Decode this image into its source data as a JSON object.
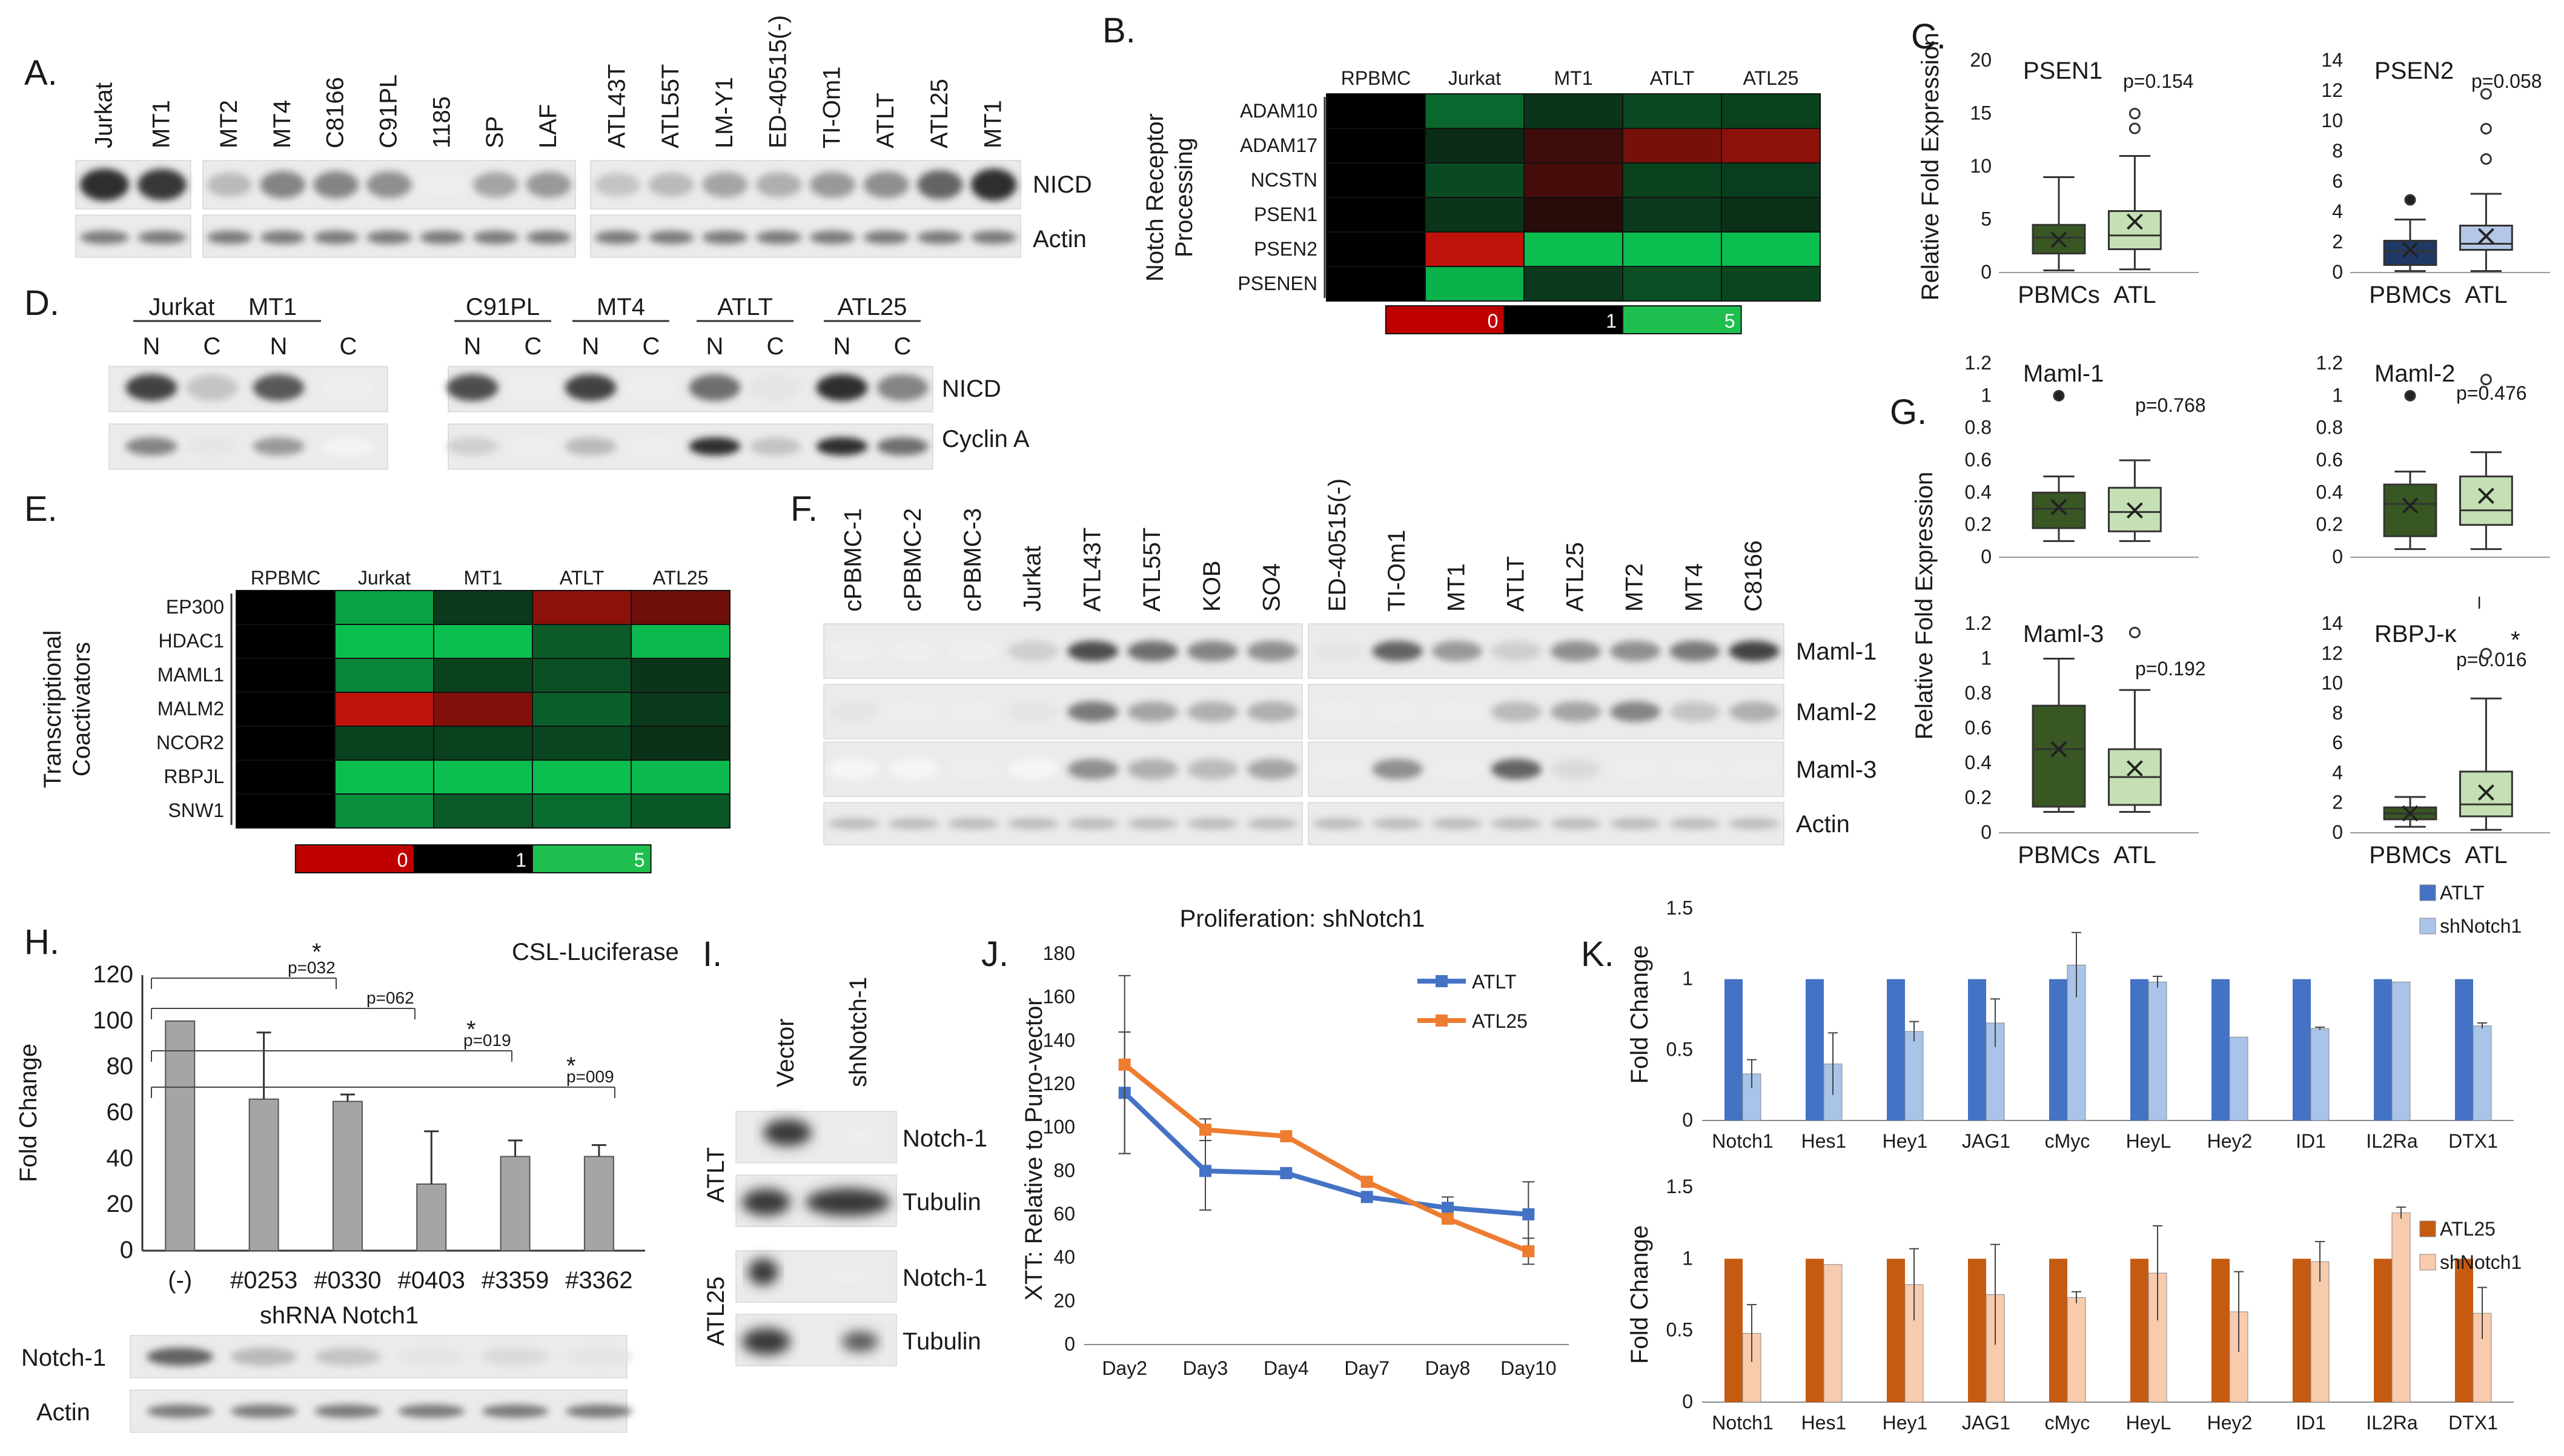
{
  "panel_letters": {
    "A": "A.",
    "B": "B.",
    "C": "C.",
    "D": "D.",
    "E": "E.",
    "F": "F.",
    "G": "G.",
    "H": "H.",
    "I": "I.",
    "J": "J.",
    "K": "K."
  },
  "panel_A": {
    "lanes_g1": [
      "Jurkat",
      "MT1"
    ],
    "lanes_g2": [
      "MT2",
      "MT4",
      "C8166",
      "C91PL",
      "1185",
      "SP",
      "LAF"
    ],
    "lanes_g3": [
      "ATL43T",
      "ATL55T",
      "LM-Y1",
      "ED-40515(-)",
      "TI-Om1",
      "ATLT",
      "ATL25",
      "MT1"
    ],
    "rows": [
      "NICD",
      "Actin"
    ],
    "nicd_g1": [
      0.95,
      0.9
    ],
    "nicd_g2": [
      0.3,
      0.55,
      0.55,
      0.5,
      0.05,
      0.4,
      0.45
    ],
    "nicd_g3": [
      0.25,
      0.3,
      0.4,
      0.35,
      0.45,
      0.5,
      0.7,
      0.95
    ]
  },
  "panel_B": {
    "columns": [
      "RPBMC",
      "Jurkat",
      "MT1",
      "ATLT",
      "ATL25"
    ],
    "rows": [
      "ADAM10",
      "ADAM17",
      "NCSTN",
      "PSEN1",
      "PSEN2",
      "PSENEN"
    ],
    "ylabel_1": "Notch Receptor",
    "ylabel_2": "Processing",
    "values": [
      [
        1,
        2.5,
        1.3,
        1.8,
        1.6
      ],
      [
        1,
        1.1,
        0.75,
        0.45,
        0.35
      ],
      [
        1,
        1.8,
        0.7,
        1.6,
        1.5
      ],
      [
        1,
        1.3,
        0.85,
        1.4,
        1.2
      ],
      [
        1,
        0.1,
        4.5,
        4.5,
        4.5
      ],
      [
        1,
        4.2,
        1.4,
        1.9,
        1.7
      ]
    ],
    "scale": [
      "0",
      "1",
      "5"
    ]
  },
  "panel_C": {
    "ylabel": "Relative Fold Expression",
    "plots": [
      {
        "title": "PSEN1",
        "pvalue": "p=0.154",
        "yticks": [
          "0",
          "5",
          "10",
          "15",
          "20"
        ],
        "ymax": 20,
        "groups": [
          "PBMCs",
          "ATL"
        ],
        "boxes": [
          {
            "q1": 1.8,
            "med": 3.3,
            "q3": 4.5,
            "wlo": 0.2,
            "whi": 9,
            "mean": 3.1,
            "out": []
          },
          {
            "q1": 2.2,
            "med": 3.5,
            "q3": 5.8,
            "wlo": 0.3,
            "whi": 11,
            "mean": 4.8,
            "out": [
              13.6,
              15
            ]
          }
        ]
      },
      {
        "title": "PSEN2",
        "pvalue": "p=0.058",
        "yticks": [
          "0",
          "2",
          "4",
          "6",
          "8",
          "10",
          "12",
          "14"
        ],
        "ymax": 14,
        "groups": [
          "PBMCs",
          "ATL"
        ],
        "boxes": [
          {
            "q1": 0.5,
            "med": 1.4,
            "q3": 2.1,
            "wlo": 0.1,
            "whi": 3.5,
            "mean": 1.5,
            "out": [
              4.8
            ]
          },
          {
            "q1": 1.5,
            "med": 1.9,
            "q3": 3.1,
            "wlo": 0.1,
            "whi": 5.2,
            "mean": 2.4,
            "out": [
              7.5,
              9.5,
              11.8
            ]
          }
        ]
      }
    ]
  },
  "panel_D": {
    "groups_left": [
      "Jurkat",
      "MT1"
    ],
    "groups_right": [
      "C91PL",
      "MT4",
      "ATLT",
      "ATL25"
    ],
    "nc": [
      "N",
      "C"
    ],
    "rows": [
      "NICD",
      "Cyclin A"
    ]
  },
  "panel_E": {
    "columns": [
      "RPBMC",
      "Jurkat",
      "MT1",
      "ATLT",
      "ATL25"
    ],
    "rows": [
      "EP300",
      "HDAC1",
      "MAML1",
      "MALM2",
      "NCOR2",
      "RBPJL",
      "SNW1"
    ],
    "ylabel_1": "Transcriptional",
    "ylabel_2": "Coactivators",
    "values": [
      [
        1,
        3.8,
        1.4,
        0.35,
        0.5
      ],
      [
        1,
        4.5,
        4.5,
        2.2,
        4.4
      ],
      [
        1,
        3.2,
        1.6,
        1.9,
        1.3
      ],
      [
        1,
        0.1,
        0.4,
        2.3,
        1.4
      ],
      [
        1,
        1.6,
        1.6,
        1.7,
        1.2
      ],
      [
        1,
        4.5,
        4.5,
        4.5,
        4.4
      ],
      [
        1,
        3.4,
        2.2,
        2.6,
        2.1
      ]
    ],
    "scale": [
      "0",
      "1",
      "5"
    ]
  },
  "panel_F": {
    "lanes_g1": [
      "cPBMC-1",
      "cPBMC-2",
      "cPBMC-3",
      "Jurkat",
      "ATL43T",
      "ATL55T",
      "KOB",
      "SO4"
    ],
    "lanes_g2": [
      "ED-40515(-)",
      "TI-Om1",
      "MT1",
      "ATLT",
      "ATL25",
      "MT2",
      "MT4",
      "C8166"
    ],
    "rows": [
      "Maml-1",
      "Maml-2",
      "Maml-3",
      "Actin"
    ]
  },
  "panel_G": {
    "ylabel": "Relative Fold Expression",
    "plots": [
      {
        "title": "Maml-1",
        "pvalue": "p=0.768",
        "yticks": [
          "0",
          "0.2",
          "0.4",
          "0.6",
          "0.8",
          "1",
          "1.2"
        ],
        "ymax": 1.2,
        "groups": [],
        "boxes": [
          {
            "q1": 0.18,
            "med": 0.3,
            "q3": 0.4,
            "wlo": 0.1,
            "whi": 0.5,
            "mean": 0.31,
            "out": [
              1.0
            ]
          },
          {
            "q1": 0.16,
            "med": 0.28,
            "q3": 0.43,
            "wlo": 0.1,
            "whi": 0.6,
            "mean": 0.29,
            "out": []
          }
        ]
      },
      {
        "title": "Maml-2",
        "pvalue": "p=0.476",
        "yticks": [
          "0",
          "0.2",
          "0.4",
          "0.6",
          "0.8",
          "1",
          "1.2"
        ],
        "ymax": 1.2,
        "groups": [],
        "boxes": [
          {
            "q1": 0.13,
            "med": 0.33,
            "q3": 0.45,
            "wlo": 0.05,
            "whi": 0.53,
            "mean": 0.32,
            "out": [
              1.0
            ]
          },
          {
            "q1": 0.2,
            "med": 0.29,
            "q3": 0.5,
            "wlo": 0.05,
            "whi": 0.65,
            "mean": 0.38,
            "out": [
              1.1
            ]
          }
        ]
      },
      {
        "title": "Maml-3",
        "pvalue": "p=0.192",
        "yticks": [
          "0",
          "0.2",
          "0.4",
          "0.6",
          "0.8",
          "1",
          "1.2"
        ],
        "ymax": 1.2,
        "groups": [
          "PBMCs",
          "ATL"
        ],
        "boxes": [
          {
            "q1": 0.15,
            "med": 0.48,
            "q3": 0.73,
            "wlo": 0.12,
            "whi": 1.0,
            "mean": 0.48,
            "out": []
          },
          {
            "q1": 0.16,
            "med": 0.32,
            "q3": 0.48,
            "wlo": 0.12,
            "whi": 0.82,
            "mean": 0.37,
            "out": [
              1.15
            ]
          }
        ]
      },
      {
        "title": "RBPJ-κ",
        "pvalue": "p=0.016",
        "star": "*",
        "yticks": [
          "0",
          "2",
          "4",
          "6",
          "8",
          "10",
          "12",
          "14"
        ],
        "ymax": 14,
        "groups": [
          "PBMCs",
          "ATL"
        ],
        "boxes": [
          {
            "q1": 0.9,
            "med": 1.3,
            "q3": 1.7,
            "wlo": 0.4,
            "whi": 2.4,
            "mean": 1.3,
            "out": []
          },
          {
            "q1": 1.1,
            "med": 1.9,
            "q3": 4.1,
            "wlo": 0.2,
            "whi": 9,
            "mean": 2.7,
            "out": [
              12
            ]
          }
        ]
      }
    ],
    "stray_mark": "l"
  },
  "panel_H": {
    "title": "CSL-Luciferase",
    "ylabel": "Fold Change",
    "xlabel": "shRNA Notch1",
    "yticks": [
      "0",
      "20",
      "40",
      "60",
      "80",
      "100",
      "120"
    ],
    "ymax": 120,
    "categories": [
      "(-)",
      "#0253",
      "#0330",
      "#0403",
      "#3359",
      "#3362"
    ],
    "values": [
      100,
      66,
      65,
      29,
      41,
      41
    ],
    "errors": [
      0,
      29,
      3,
      23,
      7,
      5
    ],
    "pvalues": [
      "p=032",
      "p=062",
      "p=019",
      "p=009"
    ],
    "stars": [
      "*",
      "*",
      "*"
    ],
    "blot_rows": [
      "Notch-1",
      "Actin"
    ]
  },
  "panel_I": {
    "columns": [
      "Vector",
      "shNotch-1"
    ],
    "groups": [
      "ATLT",
      "ATL25"
    ],
    "rows": [
      "Notch-1",
      "Tubulin",
      "Notch-1",
      "Tubulin"
    ]
  },
  "chart_data": [
    {
      "type": "line",
      "title": "Proliferation:  shNotch1",
      "xlabel": "",
      "ylabel": "XTT:  Relative to Puro-vector",
      "categories": [
        "Day2",
        "Day3",
        "Day4",
        "Day7",
        "Day8",
        "Day10"
      ],
      "yticks": [
        "0",
        "20",
        "40",
        "60",
        "80",
        "100",
        "120",
        "140",
        "160",
        "180"
      ],
      "ylim": [
        0,
        180
      ],
      "series": [
        {
          "name": "ATLT",
          "color": "#4472c4",
          "values": [
            116,
            80,
            79,
            68,
            63,
            60
          ],
          "errors": [
            28,
            18,
            0,
            0,
            5,
            15
          ]
        },
        {
          "name": "ATL25",
          "color": "#ed7d31",
          "values": [
            129,
            99,
            96,
            75,
            58,
            43
          ],
          "errors": [
            41,
            5,
            0,
            0,
            0,
            6
          ]
        }
      ]
    },
    {
      "type": "bar",
      "title": "",
      "ylabel": "Fold Change",
      "categories": [
        "Notch1",
        "Hes1",
        "Hey1",
        "JAG1",
        "cMyc",
        "HeyL",
        "Hey2",
        "ID1",
        "IL2Ra",
        "DTX1"
      ],
      "yticks": [
        "0",
        "0.5",
        "1",
        "1.5"
      ],
      "ylim": [
        0,
        1.5
      ],
      "series": [
        {
          "name": "ATLT",
          "color": "#4472c4",
          "values": [
            1,
            1,
            1,
            1,
            1,
            1,
            1,
            1,
            1,
            1
          ]
        },
        {
          "name": "shNotch1",
          "color": "#a9c4e8",
          "values": [
            0.33,
            0.4,
            0.63,
            0.69,
            1.1,
            0.98,
            0.59,
            0.65,
            0.98,
            0.67
          ],
          "errors": [
            0.1,
            0.22,
            0.07,
            0.17,
            0.23,
            0.04,
            0,
            0.01,
            0,
            0.02
          ]
        }
      ]
    },
    {
      "type": "bar",
      "title": "",
      "ylabel": "Fold Change",
      "categories": [
        "Notch1",
        "Hes1",
        "Hey1",
        "JAG1",
        "cMyc",
        "HeyL",
        "Hey2",
        "ID1",
        "IL2Ra",
        "DTX1"
      ],
      "yticks": [
        "0",
        "0.5",
        "1",
        "1.5"
      ],
      "ylim": [
        0,
        1.5
      ],
      "series": [
        {
          "name": "ATL25",
          "color": "#c55a11",
          "values": [
            1,
            1,
            1,
            1,
            1,
            1,
            1,
            1,
            1,
            1
          ]
        },
        {
          "name": "shNotch1",
          "color": "#f8cbad",
          "values": [
            0.48,
            0.96,
            0.82,
            0.75,
            0.73,
            0.9,
            0.63,
            0.98,
            1.32,
            0.62
          ],
          "errors": [
            0.2,
            0,
            0.25,
            0.35,
            0.04,
            0.33,
            0.28,
            0.14,
            0.04,
            0.18
          ]
        }
      ]
    }
  ]
}
